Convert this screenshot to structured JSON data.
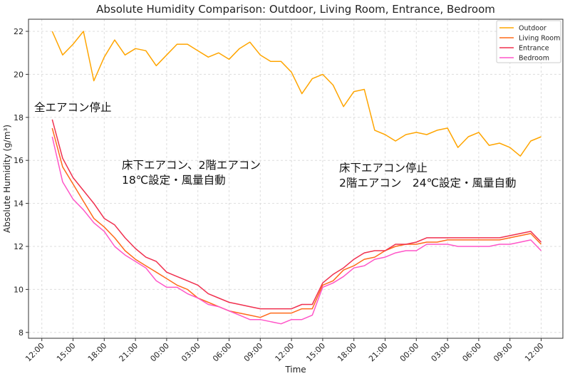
{
  "chart_data": {
    "type": "line",
    "title": "Absolute Humidity Comparison: Outdoor, Living Room, Entrance, Bedroom",
    "xlabel": "Time",
    "ylabel": "Absolute Humidity (g/m³)",
    "xticks": [
      "12:00",
      "15:00",
      "18:00",
      "21:00",
      "00:00",
      "03:00",
      "06:00",
      "09:00",
      "12:00",
      "15:00",
      "18:00",
      "21:00",
      "00:00",
      "03:00",
      "06:00",
      "09:00",
      "12:00"
    ],
    "yticks": [
      8,
      10,
      12,
      14,
      16,
      18,
      20,
      22
    ],
    "ylim": [
      7.8,
      22.6
    ],
    "grid": true,
    "legend_position": "top-right",
    "x": [
      "13:00",
      "14:00",
      "15:00",
      "16:00",
      "17:00",
      "18:00",
      "19:00",
      "20:00",
      "21:00",
      "22:00",
      "23:00",
      "00:00",
      "01:00",
      "02:00",
      "03:00",
      "04:00",
      "05:00",
      "06:00",
      "07:00",
      "08:00",
      "09:00",
      "10:00",
      "11:00",
      "12:00",
      "13:00",
      "14:00",
      "15:00",
      "16:00",
      "17:00",
      "18:00",
      "19:00",
      "20:00",
      "21:00",
      "22:00",
      "23:00",
      "00:00",
      "01:00",
      "02:00",
      "03:00",
      "04:00",
      "05:00",
      "06:00",
      "07:00",
      "08:00",
      "09:00",
      "10:00",
      "11:00",
      "12:00"
    ],
    "series": [
      {
        "name": "Outdoor",
        "color": "#FFA500",
        "values": [
          22.0,
          20.9,
          21.4,
          22.0,
          19.7,
          20.8,
          21.6,
          20.9,
          21.2,
          21.1,
          20.4,
          20.9,
          21.4,
          21.4,
          21.1,
          20.8,
          21.0,
          20.7,
          21.2,
          21.5,
          20.9,
          20.6,
          20.6,
          20.1,
          19.1,
          19.8,
          20.0,
          19.5,
          18.5,
          19.2,
          19.3,
          17.4,
          17.2,
          16.9,
          17.2,
          17.3,
          17.2,
          17.4,
          17.5,
          16.6,
          17.1,
          17.3,
          16.7,
          16.8,
          16.6,
          16.2,
          16.9,
          17.1
        ]
      },
      {
        "name": "Living Room",
        "color": "#FF6A1A",
        "values": [
          17.5,
          15.7,
          14.9,
          14.1,
          13.3,
          12.9,
          12.4,
          11.8,
          11.4,
          11.1,
          10.8,
          10.5,
          10.2,
          10.0,
          9.6,
          9.4,
          9.2,
          9.0,
          8.9,
          8.8,
          8.7,
          8.9,
          8.9,
          8.9,
          9.1,
          9.1,
          10.2,
          10.4,
          10.9,
          11.1,
          11.4,
          11.5,
          11.8,
          12.0,
          12.1,
          12.1,
          12.2,
          12.2,
          12.3,
          12.3,
          12.3,
          12.3,
          12.3,
          12.3,
          12.4,
          12.5,
          12.6,
          12.1
        ]
      },
      {
        "name": "Entrance",
        "color": "#F0304F",
        "values": [
          17.9,
          16.1,
          15.2,
          14.6,
          14.0,
          13.3,
          13.0,
          12.4,
          11.9,
          11.5,
          11.3,
          10.8,
          10.6,
          10.4,
          10.2,
          9.8,
          9.6,
          9.4,
          9.3,
          9.2,
          9.1,
          9.1,
          9.1,
          9.1,
          9.3,
          9.3,
          10.3,
          10.7,
          11.0,
          11.4,
          11.7,
          11.8,
          11.8,
          12.1,
          12.1,
          12.2,
          12.4,
          12.4,
          12.4,
          12.4,
          12.4,
          12.4,
          12.4,
          12.4,
          12.5,
          12.6,
          12.7,
          12.2
        ]
      },
      {
        "name": "Bedroom",
        "color": "#FF55C8",
        "values": [
          17.1,
          15.0,
          14.2,
          13.7,
          13.1,
          12.7,
          12.0,
          11.6,
          11.3,
          11.0,
          10.4,
          10.1,
          10.1,
          9.8,
          9.6,
          9.3,
          9.2,
          9.0,
          8.8,
          8.6,
          8.6,
          8.5,
          8.4,
          8.6,
          8.6,
          8.8,
          10.1,
          10.3,
          10.6,
          11.0,
          11.1,
          11.4,
          11.5,
          11.7,
          11.8,
          11.8,
          12.1,
          12.1,
          12.1,
          12.0,
          12.0,
          12.0,
          12.0,
          12.1,
          12.1,
          12.2,
          12.3,
          11.8
        ]
      }
    ],
    "annotations": [
      {
        "lines": [
          "全エアコン停止"
        ]
      },
      {
        "lines": [
          "床下エアコン、2階エアコン",
          "18℃設定・風量自動"
        ]
      },
      {
        "lines": [
          "床下エアコン停止",
          "2階エアコン　24℃設定・風量自動"
        ]
      }
    ]
  }
}
